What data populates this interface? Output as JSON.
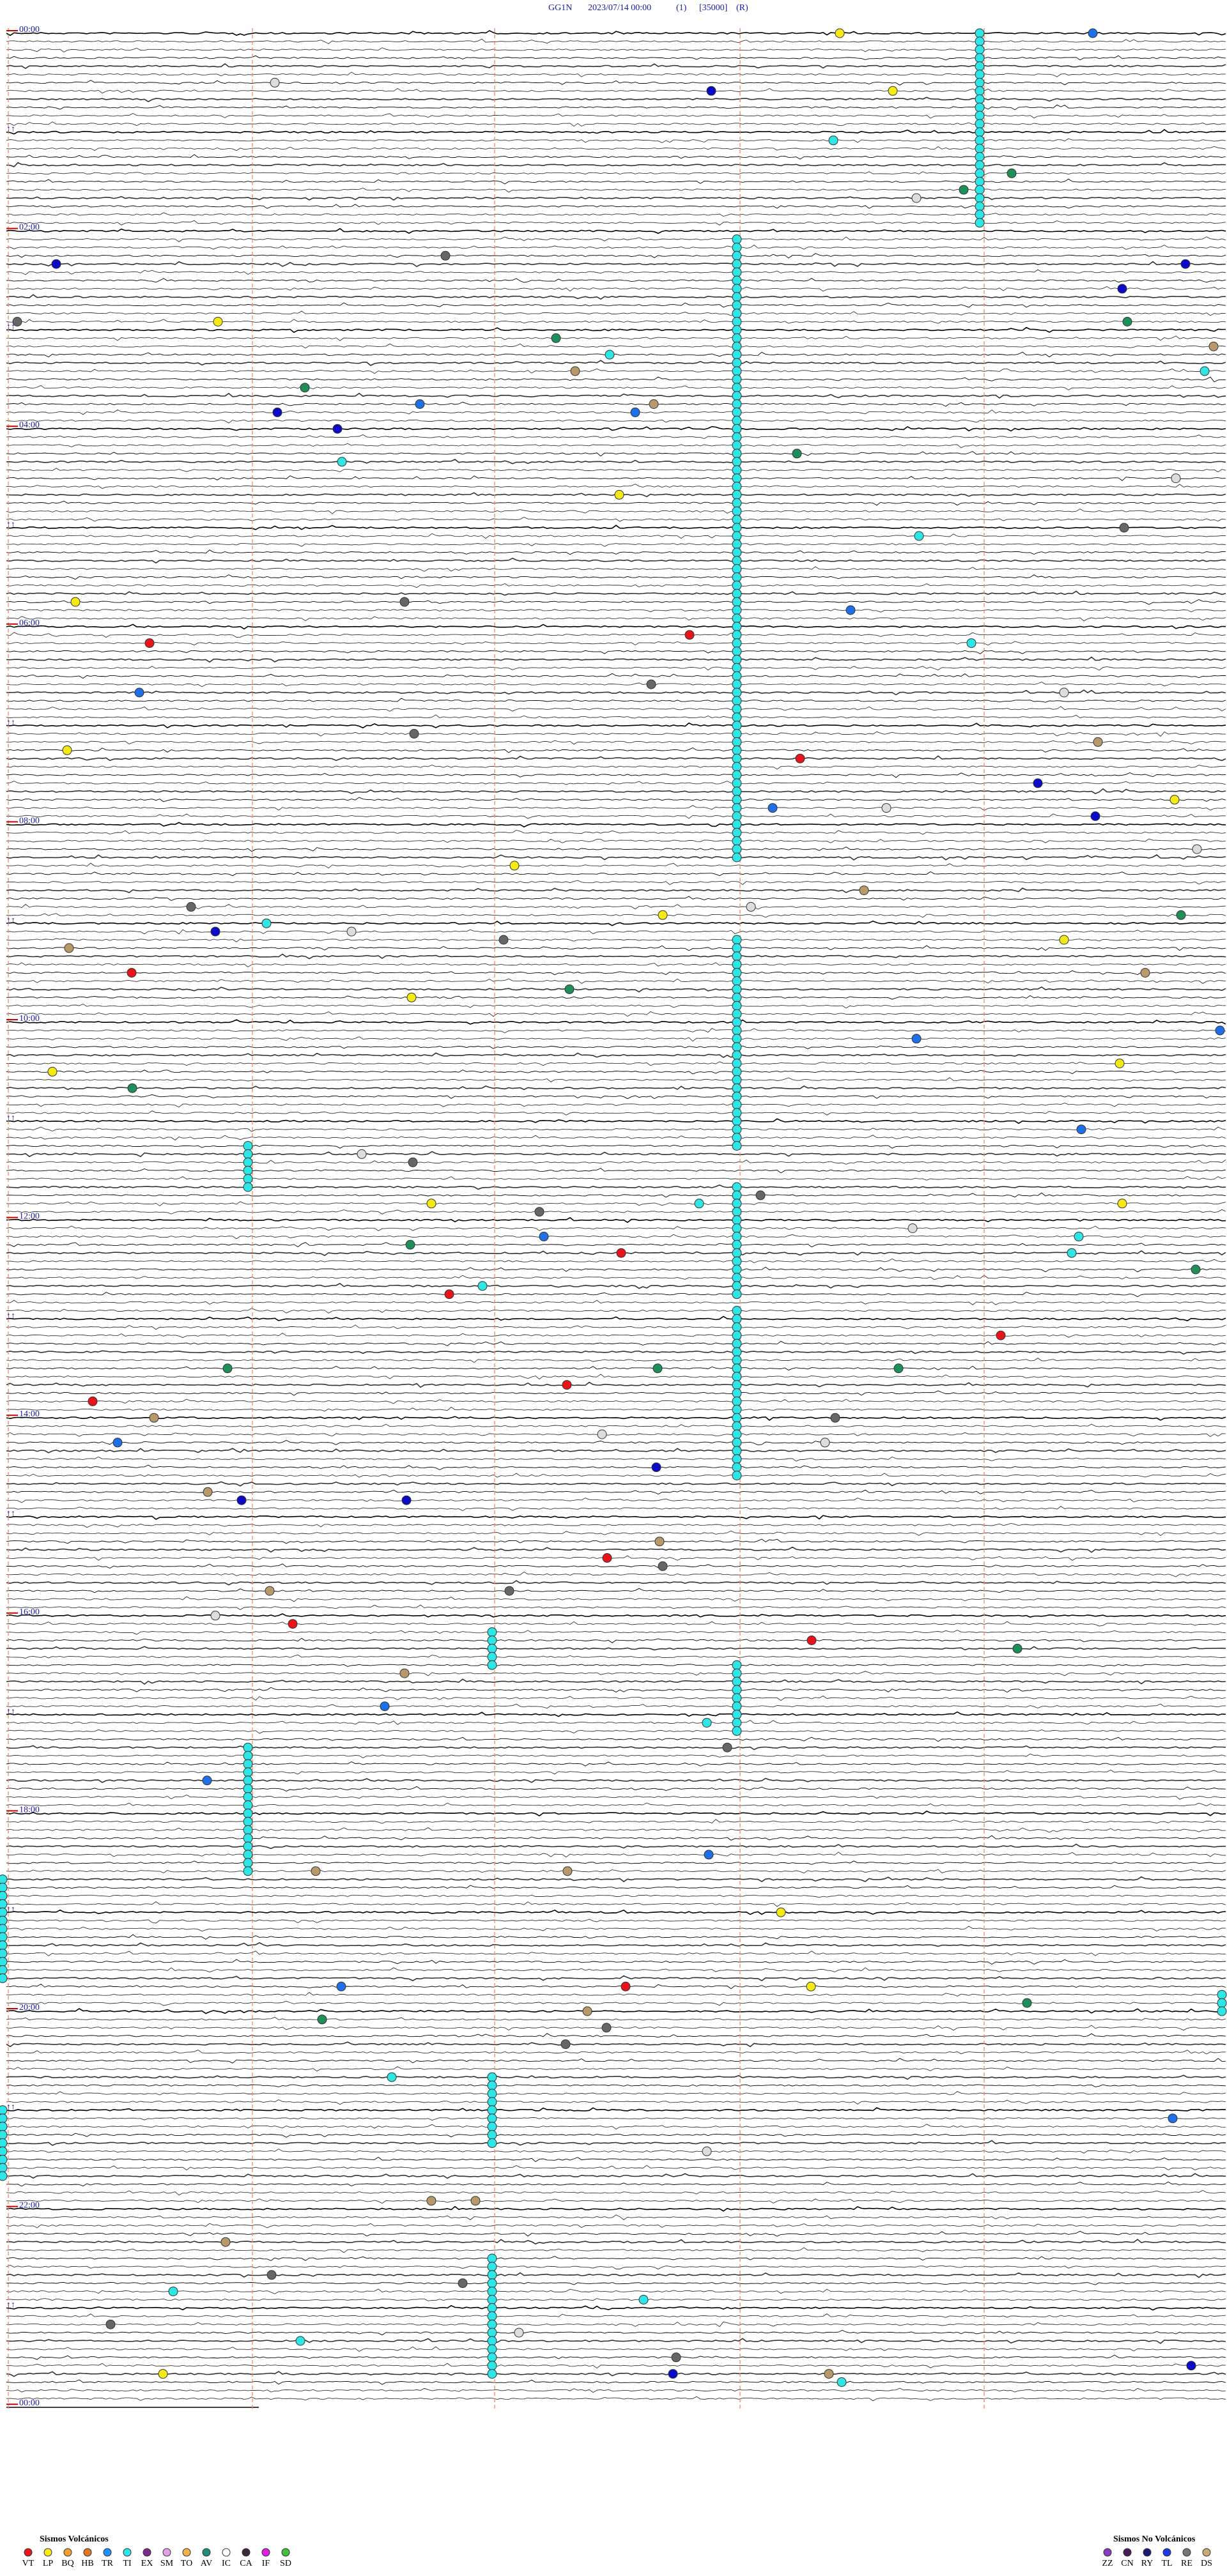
{
  "header": {
    "station": "GG1N",
    "datetime": "2023/07/14 00:00",
    "channel": "(1)",
    "scale": "[35000]",
    "mode": "(R)"
  },
  "time_labels": [
    "00:00",
    "02:00",
    "04:00",
    "06:00",
    "08:00",
    "10:00",
    "12:00",
    "14:00",
    "16:00",
    "18:00",
    "20:00",
    "22:00",
    "00:00"
  ],
  "legend": {
    "volcanic": {
      "title": "Sismos Volcánicos",
      "codes": [
        "VT",
        "LP",
        "BQ",
        "HB",
        "TR",
        "TI",
        "EX",
        "SM",
        "TO",
        "AV",
        "IC",
        "CA",
        "IF",
        "SD"
      ]
    },
    "non_volcanic": {
      "title": "Sismos No Volcánicos",
      "codes": [
        "ZZ",
        "CN",
        "RY",
        "TL",
        "RE",
        "DS"
      ]
    }
  }
}
